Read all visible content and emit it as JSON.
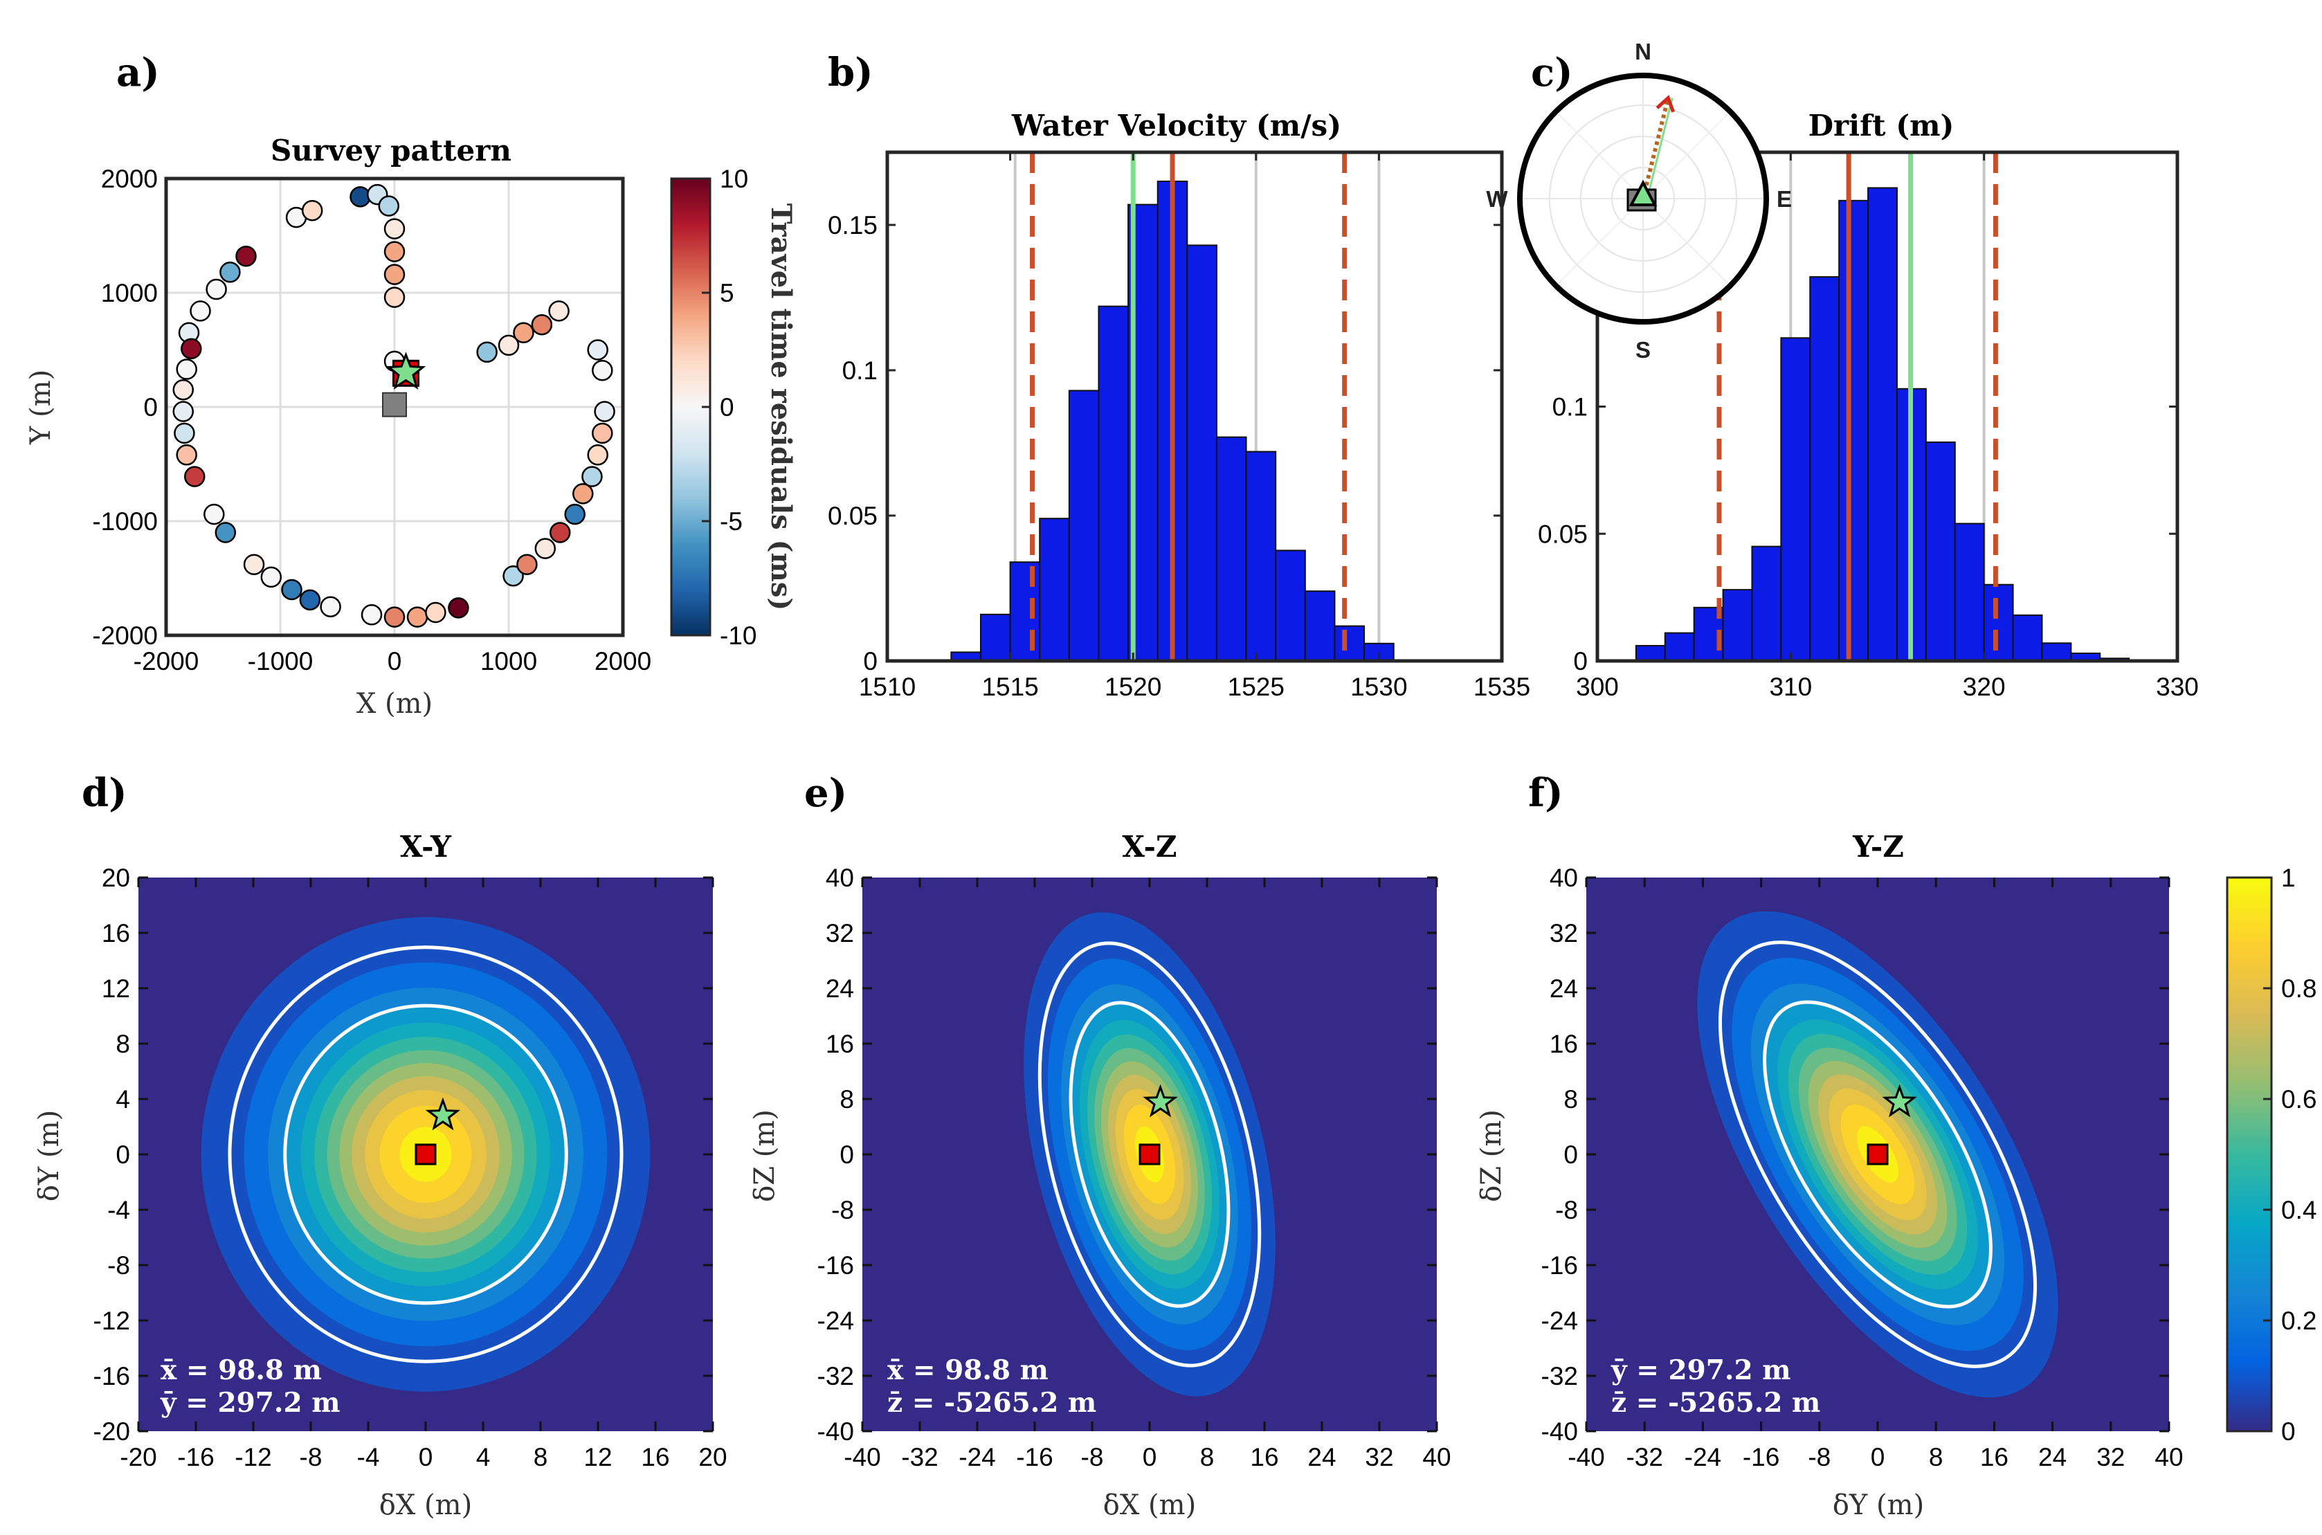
{
  "colors": {
    "bar_fill": "#0d1be6",
    "vline_red": "#c9502b",
    "vline_green": "#7ee08f",
    "vline_grey": "#c8c8c8",
    "marker_red": "#e00000",
    "marker_star": "#7ee08f",
    "marker_grey": "#808080",
    "contour_white": "#ffffff",
    "cmap_parula": [
      "#352a87",
      "#0363e1",
      "#1485d4",
      "#06a7c6",
      "#38b99e",
      "#92bf73",
      "#d9ba56",
      "#fcce2e",
      "#f9fb0e"
    ],
    "cmap_rdbu": [
      "#053061",
      "#2166ac",
      "#4393c3",
      "#92c5de",
      "#d1e5f0",
      "#f7f7f7",
      "#fddbc7",
      "#f4a582",
      "#d6604d",
      "#b2182b",
      "#67001f"
    ]
  },
  "chart_data": [
    {
      "id": "a",
      "panel_label": "a)",
      "type": "scatter",
      "title": "Survey pattern",
      "xlabel": "X (m)",
      "ylabel": "Y (m)",
      "xlim": [
        -2000,
        2000
      ],
      "ylim": [
        -2000,
        2000
      ],
      "xticks": [
        "-2000",
        "-1000",
        "0",
        "1000",
        "2000"
      ],
      "yticks": [
        "-2000",
        "-1000",
        "0",
        "1000",
        "2000"
      ],
      "grid": true,
      "colorbar": {
        "label": "Travel time residuals (ms)",
        "lim": [
          -10,
          10
        ],
        "ticks": [
          "-10",
          "-5",
          "0",
          "5",
          "10"
        ]
      },
      "points": [
        {
          "x": -300,
          "y": 1840,
          "r": -9
        },
        {
          "x": -150,
          "y": 1860,
          "r": -2
        },
        {
          "x": -50,
          "y": 1760,
          "r": -3
        },
        {
          "x": 0,
          "y": 1560,
          "r": 1
        },
        {
          "x": 0,
          "y": 1360,
          "r": 4
        },
        {
          "x": 0,
          "y": 1160,
          "r": 4
        },
        {
          "x": 0,
          "y": 960,
          "r": 2
        },
        {
          "x": 0,
          "y": 400,
          "r": 0
        },
        {
          "x": -860,
          "y": 1660,
          "r": 0
        },
        {
          "x": -720,
          "y": 1720,
          "r": 2
        },
        {
          "x": -1300,
          "y": 1320,
          "r": 9
        },
        {
          "x": -1440,
          "y": 1180,
          "r": -5
        },
        {
          "x": -1560,
          "y": 1030,
          "r": 0
        },
        {
          "x": -1700,
          "y": 840,
          "r": 0
        },
        {
          "x": -1800,
          "y": 650,
          "r": -1
        },
        {
          "x": -1780,
          "y": 510,
          "r": 9
        },
        {
          "x": -1820,
          "y": 330,
          "r": 0
        },
        {
          "x": -1850,
          "y": 150,
          "r": 1
        },
        {
          "x": -1850,
          "y": -40,
          "r": -1
        },
        {
          "x": -1840,
          "y": -230,
          "r": -2
        },
        {
          "x": -1820,
          "y": -420,
          "r": 3
        },
        {
          "x": -1750,
          "y": -610,
          "r": 7
        },
        {
          "x": -1580,
          "y": -940,
          "r": 0
        },
        {
          "x": -1480,
          "y": -1100,
          "r": -6
        },
        {
          "x": -1230,
          "y": -1380,
          "r": 1
        },
        {
          "x": -1080,
          "y": -1490,
          "r": 0
        },
        {
          "x": -900,
          "y": -1600,
          "r": -7
        },
        {
          "x": -740,
          "y": -1690,
          "r": -8
        },
        {
          "x": -560,
          "y": -1750,
          "r": 0
        },
        {
          "x": -200,
          "y": -1820,
          "r": 0
        },
        {
          "x": 0,
          "y": -1840,
          "r": 5
        },
        {
          "x": 200,
          "y": -1840,
          "r": 4
        },
        {
          "x": 360,
          "y": -1800,
          "r": 2
        },
        {
          "x": 560,
          "y": -1760,
          "r": 10
        },
        {
          "x": 1040,
          "y": -1480,
          "r": -3
        },
        {
          "x": 1160,
          "y": -1380,
          "r": 5
        },
        {
          "x": 1320,
          "y": -1240,
          "r": 1
        },
        {
          "x": 1450,
          "y": -1100,
          "r": 7
        },
        {
          "x": 1580,
          "y": -940,
          "r": -7
        },
        {
          "x": 1650,
          "y": -760,
          "r": 4
        },
        {
          "x": 1730,
          "y": -610,
          "r": -3
        },
        {
          "x": 1780,
          "y": -420,
          "r": 2
        },
        {
          "x": 1820,
          "y": -230,
          "r": 3
        },
        {
          "x": 1840,
          "y": -40,
          "r": -1
        },
        {
          "x": 1820,
          "y": 320,
          "r": 0
        },
        {
          "x": 1780,
          "y": 500,
          "r": -1
        },
        {
          "x": 810,
          "y": 480,
          "r": -4
        },
        {
          "x": 1000,
          "y": 540,
          "r": 1
        },
        {
          "x": 1130,
          "y": 650,
          "r": 4
        },
        {
          "x": 1290,
          "y": 720,
          "r": 5
        },
        {
          "x": 1440,
          "y": 840,
          "r": 1
        }
      ],
      "markers": [
        {
          "kind": "grey-square",
          "x": 0,
          "y": 20
        },
        {
          "kind": "red-square",
          "x": 100,
          "y": 295
        },
        {
          "kind": "green-star",
          "x": 100,
          "y": 300
        }
      ]
    },
    {
      "id": "b",
      "panel_label": "b)",
      "type": "bar",
      "title": "Water Velocity (m/s)",
      "xlim": [
        1510,
        1535
      ],
      "ylim": [
        0,
        0.175
      ],
      "xticks": [
        "1510",
        "1515",
        "1520",
        "1525",
        "1530",
        "1535"
      ],
      "yticks": [
        "0",
        "0.05",
        "0.1",
        "0.15"
      ],
      "bin_edges": [
        1512.6,
        1513.8,
        1515.0,
        1516.2,
        1517.4,
        1518.6,
        1519.8,
        1521.0,
        1522.2,
        1523.4,
        1524.6,
        1525.8,
        1527.0,
        1528.2,
        1529.4,
        1530.6,
        1531.8
      ],
      "values": [
        0.003,
        0.016,
        0.034,
        0.049,
        0.093,
        0.122,
        0.157,
        0.165,
        0.143,
        0.077,
        0.072,
        0.038,
        0.024,
        0.012,
        0.006,
        0
      ],
      "vlines": [
        {
          "x": 1515.2,
          "style": "grey"
        },
        {
          "x": 1520.0,
          "style": "grey"
        },
        {
          "x": 1525.0,
          "style": "grey"
        },
        {
          "x": 1530.0,
          "style": "grey"
        },
        {
          "x": 1521.6,
          "style": "red-solid"
        },
        {
          "x": 1515.9,
          "style": "red-dashed"
        },
        {
          "x": 1528.6,
          "style": "red-dashed"
        },
        {
          "x": 1520.0,
          "style": "green"
        }
      ]
    },
    {
      "id": "c",
      "panel_label": "c)",
      "type": "bar",
      "title": "Drift (m)",
      "xlim": [
        300,
        330
      ],
      "ylim": [
        0,
        0.2
      ],
      "xticks": [
        "300",
        "310",
        "320",
        "330"
      ],
      "yticks": [
        "0",
        "0.05",
        "0.1"
      ],
      "bin_edges": [
        302.0,
        303.5,
        305.0,
        306.5,
        308.0,
        309.5,
        311.0,
        312.5,
        314.0,
        315.5,
        317.0,
        318.5,
        320.0,
        321.5,
        323.0,
        324.5,
        326.0,
        327.5
      ],
      "values": [
        0.006,
        0.011,
        0.021,
        0.028,
        0.045,
        0.127,
        0.151,
        0.181,
        0.186,
        0.107,
        0.086,
        0.054,
        0.03,
        0.018,
        0.007,
        0.003,
        0.001
      ],
      "vlines": [
        {
          "x": 310.0,
          "style": "grey"
        },
        {
          "x": 320.0,
          "style": "grey"
        },
        {
          "x": 313.0,
          "style": "red-solid"
        },
        {
          "x": 306.3,
          "style": "red-dashed"
        },
        {
          "x": 320.6,
          "style": "red-dashed"
        },
        {
          "x": 316.2,
          "style": "green"
        }
      ],
      "compass": {
        "labels": [
          "N",
          "E",
          "S",
          "W"
        ],
        "arrow_azimuth_deg": 14
      }
    },
    {
      "id": "d",
      "panel_label": "d)",
      "type": "heatmap",
      "title": "X-Y",
      "xlabel": "δX (m)",
      "ylabel": "δY (m)",
      "xlim": [
        -20,
        20
      ],
      "ylim": [
        -20,
        20
      ],
      "xticks": [
        "-20",
        "-16",
        "-12",
        "-8",
        "-4",
        "0",
        "4",
        "8",
        "12",
        "16",
        "20"
      ],
      "yticks": [
        "-20",
        "-16",
        "-12",
        "-8",
        "-4",
        "0",
        "4",
        "8",
        "12",
        "16",
        "20"
      ],
      "annotation": [
        "x̄ = 98.8 m",
        "ȳ = 297.2 m"
      ],
      "center": [
        0,
        0
      ],
      "sigma": [
        6.2,
        6.8
      ],
      "rotation_deg": 0,
      "star": [
        1.2,
        2.8
      ],
      "square": [
        0,
        0
      ],
      "contours_sigma": [
        1.58,
        2.2
      ]
    },
    {
      "id": "e",
      "panel_label": "e)",
      "type": "heatmap",
      "title": "X-Z",
      "xlabel": "δX (m)",
      "ylabel": "δZ (m)",
      "xlim": [
        -40,
        40
      ],
      "ylim": [
        -40,
        40
      ],
      "xticks": [
        "-40",
        "-32",
        "-24",
        "-16",
        "-8",
        "0",
        "8",
        "16",
        "24",
        "32",
        "40"
      ],
      "yticks": [
        "-40",
        "-32",
        "-24",
        "-16",
        "-8",
        "0",
        "8",
        "16",
        "24",
        "32",
        "40"
      ],
      "annotation": [
        "x̄ = 98.8 m",
        "z̄ = -5265.2 m"
      ],
      "center": [
        0,
        0
      ],
      "sigma": [
        6.3,
        14.2
      ],
      "rotation_deg": -14,
      "star": [
        1.5,
        7.5
      ],
      "square": [
        0,
        0
      ],
      "contours_sigma": [
        1.58,
        2.2
      ]
    },
    {
      "id": "f",
      "panel_label": "f)",
      "type": "heatmap",
      "title": "Y-Z",
      "xlabel": "δY (m)",
      "ylabel": "δZ (m)",
      "xlim": [
        -40,
        40
      ],
      "ylim": [
        -40,
        40
      ],
      "xticks": [
        "-40",
        "-32",
        "-24",
        "-16",
        "-8",
        "0",
        "8",
        "16",
        "24",
        "32",
        "40"
      ],
      "yticks": [
        "-40",
        "-32",
        "-24",
        "-16",
        "-8",
        "0",
        "8",
        "16",
        "24",
        "32",
        "40"
      ],
      "annotation": [
        "ȳ = 297.2 m",
        "z̄ = -5265.2 m"
      ],
      "center": [
        0,
        0
      ],
      "sigma": [
        6.8,
        15.8
      ],
      "rotation_deg": -32,
      "star": [
        3,
        7.5
      ],
      "square": [
        0,
        0
      ],
      "contours_sigma": [
        1.58,
        2.2
      ],
      "colorbar": {
        "lim": [
          0,
          1
        ],
        "ticks": [
          "0",
          "0.2",
          "0.4",
          "0.6",
          "0.8",
          "1"
        ]
      }
    }
  ]
}
